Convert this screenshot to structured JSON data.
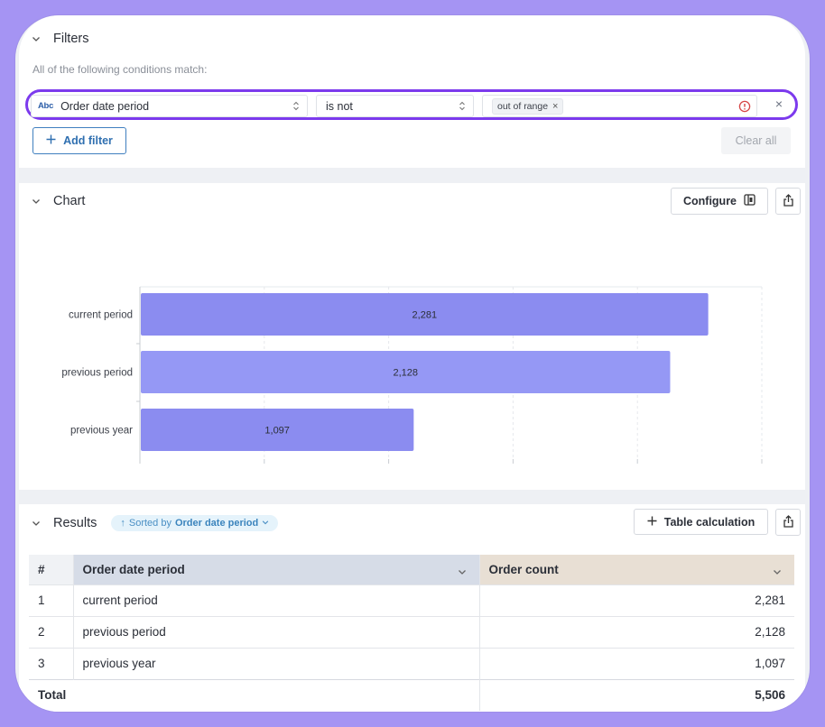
{
  "filters": {
    "title": "Filters",
    "subtitle": "All of the following conditions match:",
    "field_type_icon": "Abc",
    "field": "Order date period",
    "operator": "is not",
    "value_chip": "out of range",
    "chip_remove": "×",
    "remove_row": "×",
    "add_filter_label": "Add filter",
    "clear_all_label": "Clear all"
  },
  "chart": {
    "title": "Chart",
    "configure_label": "Configure"
  },
  "chart_data": {
    "type": "bar",
    "orientation": "horizontal",
    "categories": [
      "current period",
      "previous period",
      "previous year"
    ],
    "values": [
      2281,
      2128,
      1097
    ],
    "data_labels": [
      "2,281",
      "2,128",
      "1,097"
    ],
    "xlim": [
      0,
      2500
    ],
    "colors": [
      "#8b8cf0",
      "#9598f5",
      "#8b8cf0"
    ],
    "grid": true,
    "legend": "none"
  },
  "results": {
    "title": "Results",
    "sort_prefix": "Sorted by",
    "sort_field": "Order date period",
    "table_calc_label": "Table calculation",
    "columns": [
      "#",
      "Order date period",
      "Order count"
    ],
    "rows": [
      {
        "n": "1",
        "period": "current period",
        "count": "2,281"
      },
      {
        "n": "2",
        "period": "previous period",
        "count": "2,128"
      },
      {
        "n": "3",
        "period": "previous year",
        "count": "1,097"
      }
    ],
    "total_label": "Total",
    "total_value": "5,506"
  },
  "colors": {
    "accent": "#7c3aed",
    "link": "#2f6fb0",
    "background": "#a594f3"
  }
}
